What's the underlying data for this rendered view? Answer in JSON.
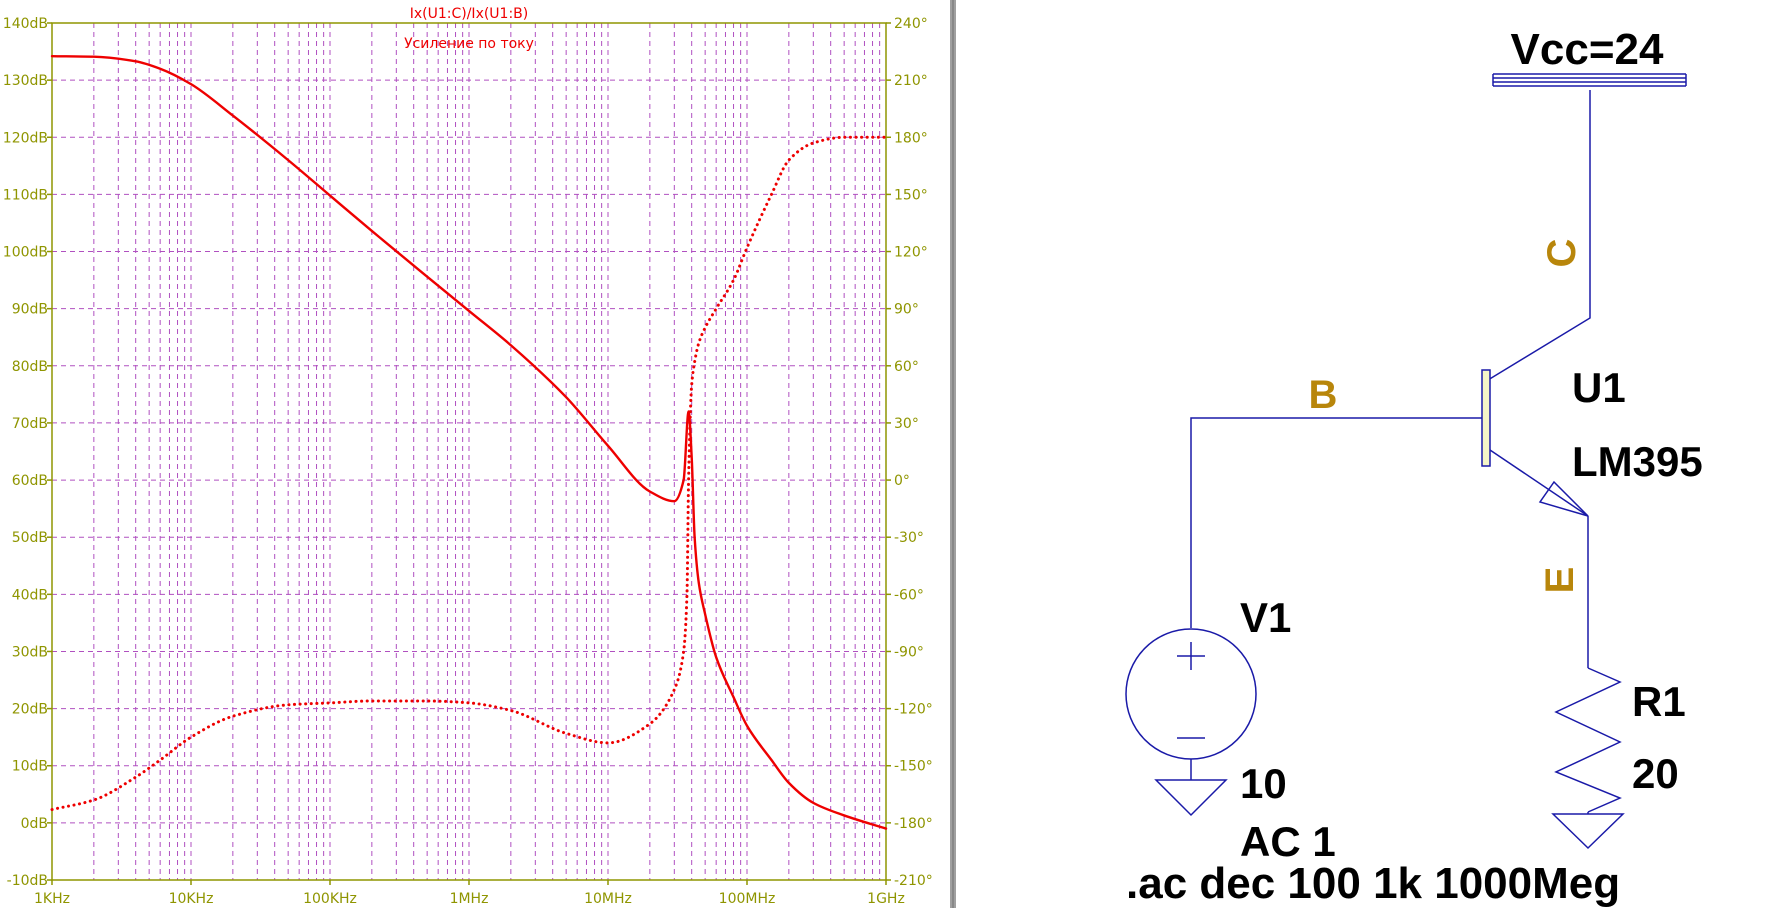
{
  "colors": {
    "plot_bg": "#ffffff",
    "axis": "#8f9500",
    "grid": "#b050c0",
    "trace": "#ee0000",
    "wire": "#1a1aa8",
    "net_label": "#b8860b",
    "text": "#000000",
    "divider": "#a0a0a0"
  },
  "plot": {
    "trace_name": "Ix(U1:C)/Ix(U1:B)",
    "subtitle": "Усиление по току"
  },
  "chart_data": {
    "type": "line",
    "title": "Ix(U1:C)/Ix(U1:B)",
    "subtitle": "Усиление по току",
    "x_scale": "log",
    "xlim": [
      1000,
      1000000000
    ],
    "ylim_left": [
      -10,
      140
    ],
    "ylim_right": [
      -210,
      240
    ],
    "x_tick_labels": [
      "1KHz",
      "10KHz",
      "100KHz",
      "1MHz",
      "10MHz",
      "100MHz",
      "1GHz"
    ],
    "x_tick_values": [
      1000,
      10000,
      100000,
      1000000,
      10000000,
      100000000,
      1000000000
    ],
    "y_left_tick_labels": [
      "140dB",
      "130dB",
      "120dB",
      "110dB",
      "100dB",
      "90dB",
      "80dB",
      "70dB",
      "60dB",
      "50dB",
      "40dB",
      "30dB",
      "20dB",
      "10dB",
      "0dB",
      "-10dB"
    ],
    "y_left_tick_values": [
      140,
      130,
      120,
      110,
      100,
      90,
      80,
      70,
      60,
      50,
      40,
      30,
      20,
      10,
      0,
      -10
    ],
    "y_right_tick_labels": [
      "240°",
      "210°",
      "180°",
      "150°",
      "120°",
      "90°",
      "60°",
      "30°",
      "0°",
      "-30°",
      "-60°",
      "-90°",
      "-120°",
      "-150°",
      "-180°",
      "-210°"
    ],
    "y_right_tick_values": [
      240,
      210,
      180,
      150,
      120,
      90,
      60,
      30,
      0,
      -30,
      -60,
      -90,
      -120,
      -150,
      -180,
      -210
    ],
    "grid": true,
    "series": [
      {
        "name": "Ix(U1:C)/Ix(U1:B)",
        "kind": "magnitude_db",
        "axis": "left",
        "style": "solid",
        "x": [
          1000,
          2000,
          4000,
          6000,
          10000,
          20000,
          50000,
          100000,
          200000,
          500000,
          1000000,
          2000000,
          5000000,
          10000000,
          20000000,
          30000000,
          35000000,
          38000000,
          40000000,
          42000000,
          45000000,
          50000000,
          60000000,
          80000000,
          100000000,
          150000000,
          200000000,
          300000000,
          500000000,
          1000000000
        ],
        "values": [
          134.2,
          134.1,
          133.3,
          132.0,
          129.3,
          123.8,
          116.0,
          109.8,
          103.6,
          95.6,
          89.6,
          83.6,
          74.5,
          66.0,
          58.0,
          56.3,
          60.0,
          72.0,
          64.0,
          50.0,
          42.0,
          36.5,
          29.0,
          22.0,
          17.0,
          11.0,
          7.0,
          3.5,
          1.3,
          -1.0
        ]
      },
      {
        "name": "Ix(U1:C)/Ix(U1:B)",
        "kind": "phase_deg",
        "axis": "right",
        "style": "dotted",
        "x": [
          1000,
          2000,
          4000,
          6000,
          10000,
          20000,
          50000,
          100000,
          200000,
          500000,
          1000000,
          2000000,
          5000000,
          10000000,
          20000000,
          30000000,
          35000000,
          37000000,
          38000000,
          40000000,
          42000000,
          45000000,
          50000000,
          60000000,
          80000000,
          100000000,
          150000000,
          200000000,
          300000000,
          500000000,
          1000000000
        ],
        "values": [
          -173,
          -168,
          -156,
          -147,
          -135,
          -124,
          -118,
          -117,
          -116,
          -116,
          -117,
          -121,
          -133,
          -138,
          -128,
          -110,
          -90,
          -60,
          0,
          50,
          62,
          72,
          80,
          90,
          105,
          122,
          150,
          168,
          177,
          180,
          180
        ]
      }
    ]
  },
  "schematic": {
    "supply_label": "Vcc=24",
    "net_c": "C",
    "net_b": "B",
    "net_e": "E",
    "transistor_ref": "U1",
    "transistor_model": "LM395",
    "source_ref": "V1",
    "source_value": "10",
    "source_ac": "AC 1",
    "resistor_ref": "R1",
    "resistor_value": "20",
    "directive": ".ac dec 100 1k 1000Meg"
  }
}
